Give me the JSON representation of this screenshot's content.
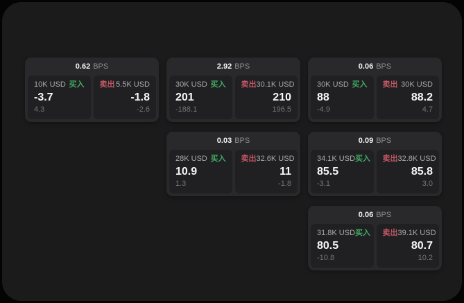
{
  "labels": {
    "bps_suffix": "BPS",
    "buy": "买入",
    "sell": "卖出"
  },
  "colors": {
    "page_background": "#040404",
    "panel_background": "#1b1b1c",
    "card_background": "#29292b",
    "tile_background": "#202022",
    "buy_green": "#3fab63",
    "sell_red": "#c05663",
    "value_white": "#f7f7f8",
    "label_gray": "#a9a9ad",
    "sub_gray": "#747477"
  },
  "cards": [
    {
      "col": 1,
      "row": 1,
      "bps": "0.62",
      "buy": {
        "amount": "10K USD",
        "value": "-3.7",
        "sub": "4.3"
      },
      "sell": {
        "amount": "5.5K USD",
        "value": "-1.8",
        "sub": "-2.6"
      }
    },
    {
      "col": 2,
      "row": 1,
      "bps": "2.92",
      "buy": {
        "amount": "30K USD",
        "value": "201",
        "sub": "-188.1"
      },
      "sell": {
        "amount": "30.1K USD",
        "value": "210",
        "sub": "196.5"
      }
    },
    {
      "col": 3,
      "row": 1,
      "bps": "0.06",
      "buy": {
        "amount": "30K USD",
        "value": "88",
        "sub": "-4.9"
      },
      "sell": {
        "amount": "30K USD",
        "value": "88.2",
        "sub": "4.7"
      }
    },
    {
      "col": 2,
      "row": 2,
      "bps": "0.03",
      "buy": {
        "amount": "28K USD",
        "value": "10.9",
        "sub": "1.3"
      },
      "sell": {
        "amount": "32.6K USD",
        "value": "11",
        "sub": "-1.8"
      }
    },
    {
      "col": 3,
      "row": 2,
      "bps": "0.09",
      "buy": {
        "amount": "34.1K USD",
        "value": "85.5",
        "sub": "-3.1"
      },
      "sell": {
        "amount": "32.8K USD",
        "value": "85.8",
        "sub": "3.0"
      }
    },
    {
      "col": 3,
      "row": 3,
      "bps": "0.06",
      "buy": {
        "amount": "31.8K USD",
        "value": "80.5",
        "sub": "-10.8"
      },
      "sell": {
        "amount": "39.1K USD",
        "value": "80.7",
        "sub": "10.2"
      }
    }
  ]
}
